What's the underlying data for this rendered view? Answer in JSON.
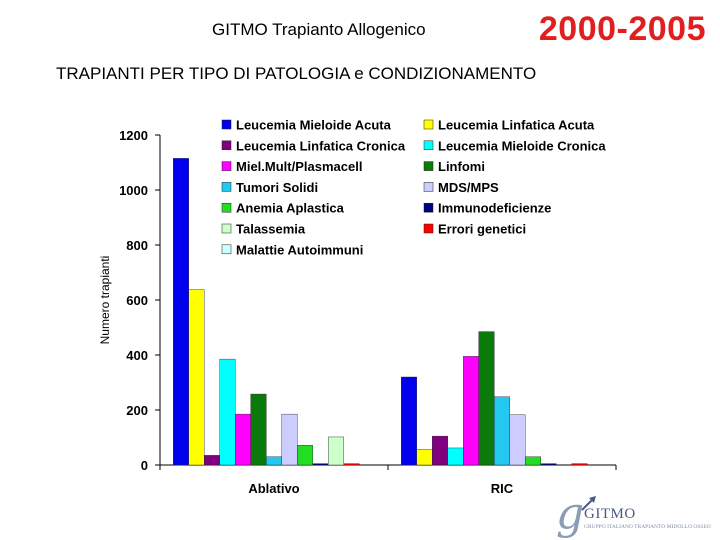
{
  "header": {
    "title": "GITMO Trapianto Allogenico",
    "period": "2000-2005",
    "subtitle": "TRAPIANTI PER TIPO DI PATOLOGIA e CONDIZIONAMENTO"
  },
  "logo": {
    "glyph": "g",
    "name": "GITMO",
    "tagline": "GRUPPO ITALIANO TRAPIANTO MIDOLLO OSSEO"
  },
  "chart_data": {
    "type": "bar",
    "categories": [
      "Ablativo",
      "RIC"
    ],
    "ylabel": "Numero trapianti",
    "xlabel": "",
    "title": "",
    "ylim": [
      0,
      1200
    ],
    "yticks": [
      0,
      200,
      400,
      600,
      800,
      1000,
      1200
    ],
    "grid": false,
    "legend_position": "top",
    "series": [
      {
        "name": "Leucemia Mieloide Acuta",
        "color": "#0000ee",
        "values": [
          1115,
          320
        ]
      },
      {
        "name": "Leucemia Linfatica Acuta",
        "color": "#ffff00",
        "values": [
          638,
          57
        ]
      },
      {
        "name": "Leucemia Linfatica Cronica",
        "color": "#800080",
        "values": [
          35,
          105
        ]
      },
      {
        "name": "Leucemia Mieloide Cronica",
        "color": "#00ffff",
        "values": [
          385,
          62
        ]
      },
      {
        "name": "Miel.Mult/Plasmacell",
        "color": "#ff00ff",
        "values": [
          185,
          395
        ]
      },
      {
        "name": "Linfomi",
        "color": "#0a7a0a",
        "values": [
          258,
          485
        ]
      },
      {
        "name": "Tumori Solidi",
        "color": "#22c8f0",
        "values": [
          30,
          248
        ]
      },
      {
        "name": "MDS/MPS",
        "color": "#ccccff",
        "values": [
          185,
          183
        ]
      },
      {
        "name": "Anemia Aplastica",
        "color": "#22dd22",
        "values": [
          72,
          30
        ]
      },
      {
        "name": "Immunodeficienze",
        "color": "#000080",
        "values": [
          5,
          5
        ]
      },
      {
        "name": "Talassemia",
        "color": "#ccffcc",
        "values": [
          102,
          0
        ]
      },
      {
        "name": "Errori genetici",
        "color": "#ff0000",
        "values": [
          5,
          5
        ]
      },
      {
        "name": "Malattie Autoimmuni",
        "color": "#ccffff",
        "values": [
          0,
          0
        ]
      }
    ]
  }
}
